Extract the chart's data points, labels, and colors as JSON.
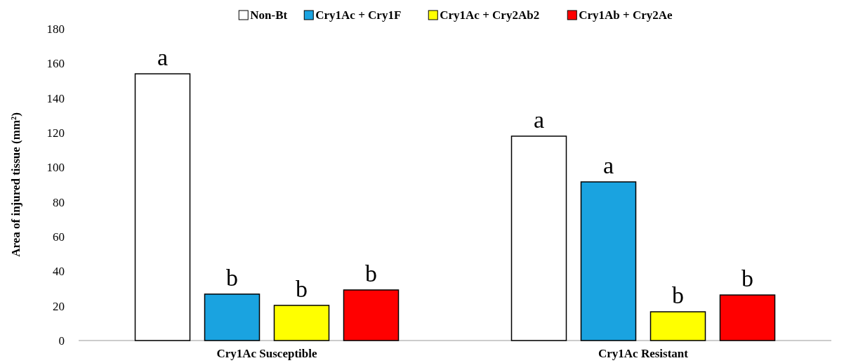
{
  "chart_data": {
    "type": "bar",
    "ylabel": "Area of injured tissue (mm²)",
    "categories": [
      "Cry1Ac Susceptible",
      "Cry1Ac Resistant"
    ],
    "ylim": [
      0,
      180
    ],
    "yticks": [
      0,
      20,
      40,
      60,
      80,
      100,
      120,
      140,
      160,
      180
    ],
    "grid": false,
    "legend": "top",
    "series": [
      {
        "name": "Non-Bt",
        "color": "#ffffff",
        "values": [
          154,
          118
        ],
        "value_labels": [
          "a",
          "a"
        ]
      },
      {
        "name": "Cry1Ac + Cry1F",
        "color": "#1aa3e0",
        "values": [
          26.8,
          91.6
        ],
        "value_labels": [
          "b",
          "a"
        ]
      },
      {
        "name": "Cry1Ac + Cry2Ab2",
        "color": "#ffff00",
        "values": [
          20.3,
          16.6
        ],
        "value_labels": [
          "b",
          "b"
        ]
      },
      {
        "name": "Cry1Ab + Cry2Ae",
        "color": "#ff0000",
        "values": [
          29.2,
          26.3
        ],
        "value_labels": [
          "b",
          "b"
        ]
      }
    ]
  }
}
